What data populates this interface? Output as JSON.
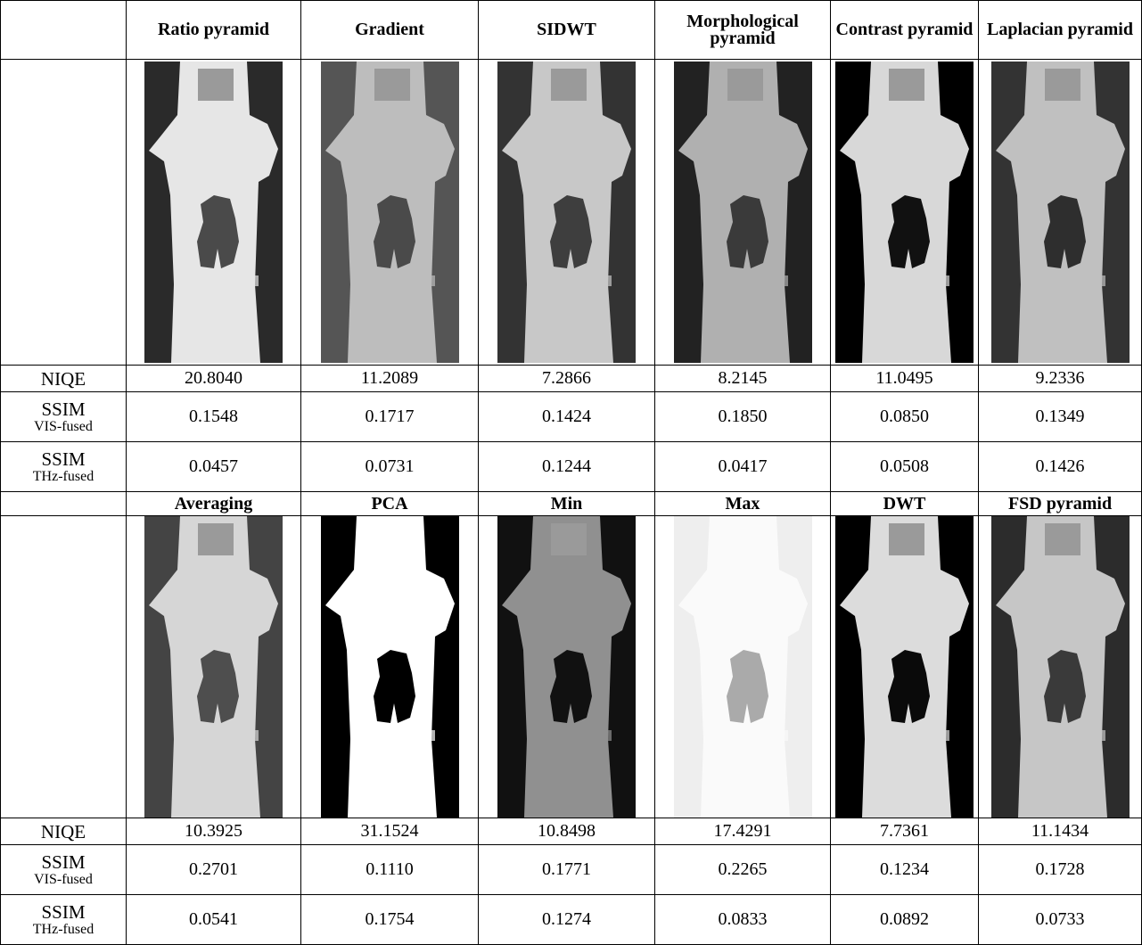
{
  "table": {
    "blocks": [
      {
        "methods": [
          "Ratio pyramid",
          "Gradient",
          "SIDWT",
          "Morphological pyramid",
          "Contrast pyramid",
          "Laplacian pyramid"
        ],
        "rows": [
          {
            "metric": "NIQE",
            "values": [
              "20.8040",
              "11.2089",
              "7.2866",
              "8.2145",
              "11.0495",
              "9.2336"
            ]
          },
          {
            "metric": "SSIM",
            "subscript": "VIS-fused",
            "values": [
              "0.1548",
              "0.1717",
              "0.1424",
              "0.1850",
              "0.0850",
              "0.1349"
            ]
          },
          {
            "metric": "SSIM",
            "subscript": "THz-fused",
            "values": [
              "0.0457",
              "0.0731",
              "0.1244",
              "0.0417",
              "0.0508",
              "0.1426"
            ]
          }
        ]
      },
      {
        "methods": [
          "Averaging",
          "PCA",
          "Min",
          "Max",
          "DWT",
          "FSD pyramid"
        ],
        "rows": [
          {
            "metric": "NIQE",
            "values": [
              "10.3925",
              "31.1524",
              "10.8498",
              "17.4291",
              "7.7361",
              "11.1434"
            ]
          },
          {
            "metric": "SSIM",
            "subscript": "VIS-fused",
            "values": [
              "0.2701",
              "0.1110",
              "0.1771",
              "0.2265",
              "0.1234",
              "0.1728"
            ]
          },
          {
            "metric": "SSIM",
            "subscript": "THz-fused",
            "values": [
              "0.0541",
              "0.1754",
              "0.1274",
              "0.0833",
              "0.0892",
              "0.0733"
            ]
          }
        ]
      }
    ]
  }
}
